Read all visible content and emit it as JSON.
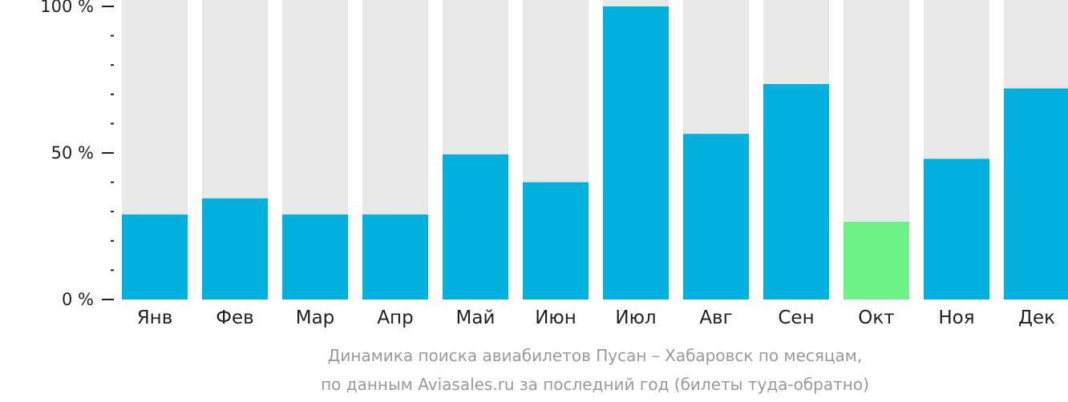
{
  "chart_data": {
    "type": "bar",
    "categories": [
      "Янв",
      "Фев",
      "Мар",
      "Апр",
      "Май",
      "Июн",
      "Июл",
      "Авг",
      "Сен",
      "Окт",
      "Ноя",
      "Дек"
    ],
    "values": [
      29,
      34.5,
      29,
      29,
      49.5,
      40,
      100,
      56.5,
      73.5,
      26.5,
      48,
      72
    ],
    "highlight_index": 9,
    "y_ticks": [
      {
        "value": 100,
        "label": "100 %"
      },
      {
        "value": 50,
        "label": "50 %"
      },
      {
        "value": 0,
        "label": "0 %"
      }
    ],
    "ylim": [
      0,
      100
    ],
    "title": "Динамика поиска авиабилетов Пусан – Хабаровск по месяцам,",
    "subtitle": "по данным Aviasales.ru за последний год (билеты туда-обратно)",
    "colors": {
      "bar": "#00b0dd",
      "highlight": "#6cf286",
      "background_bar": "#e8e8e8",
      "axis": "#222222",
      "caption": "#9a9a9a"
    }
  }
}
